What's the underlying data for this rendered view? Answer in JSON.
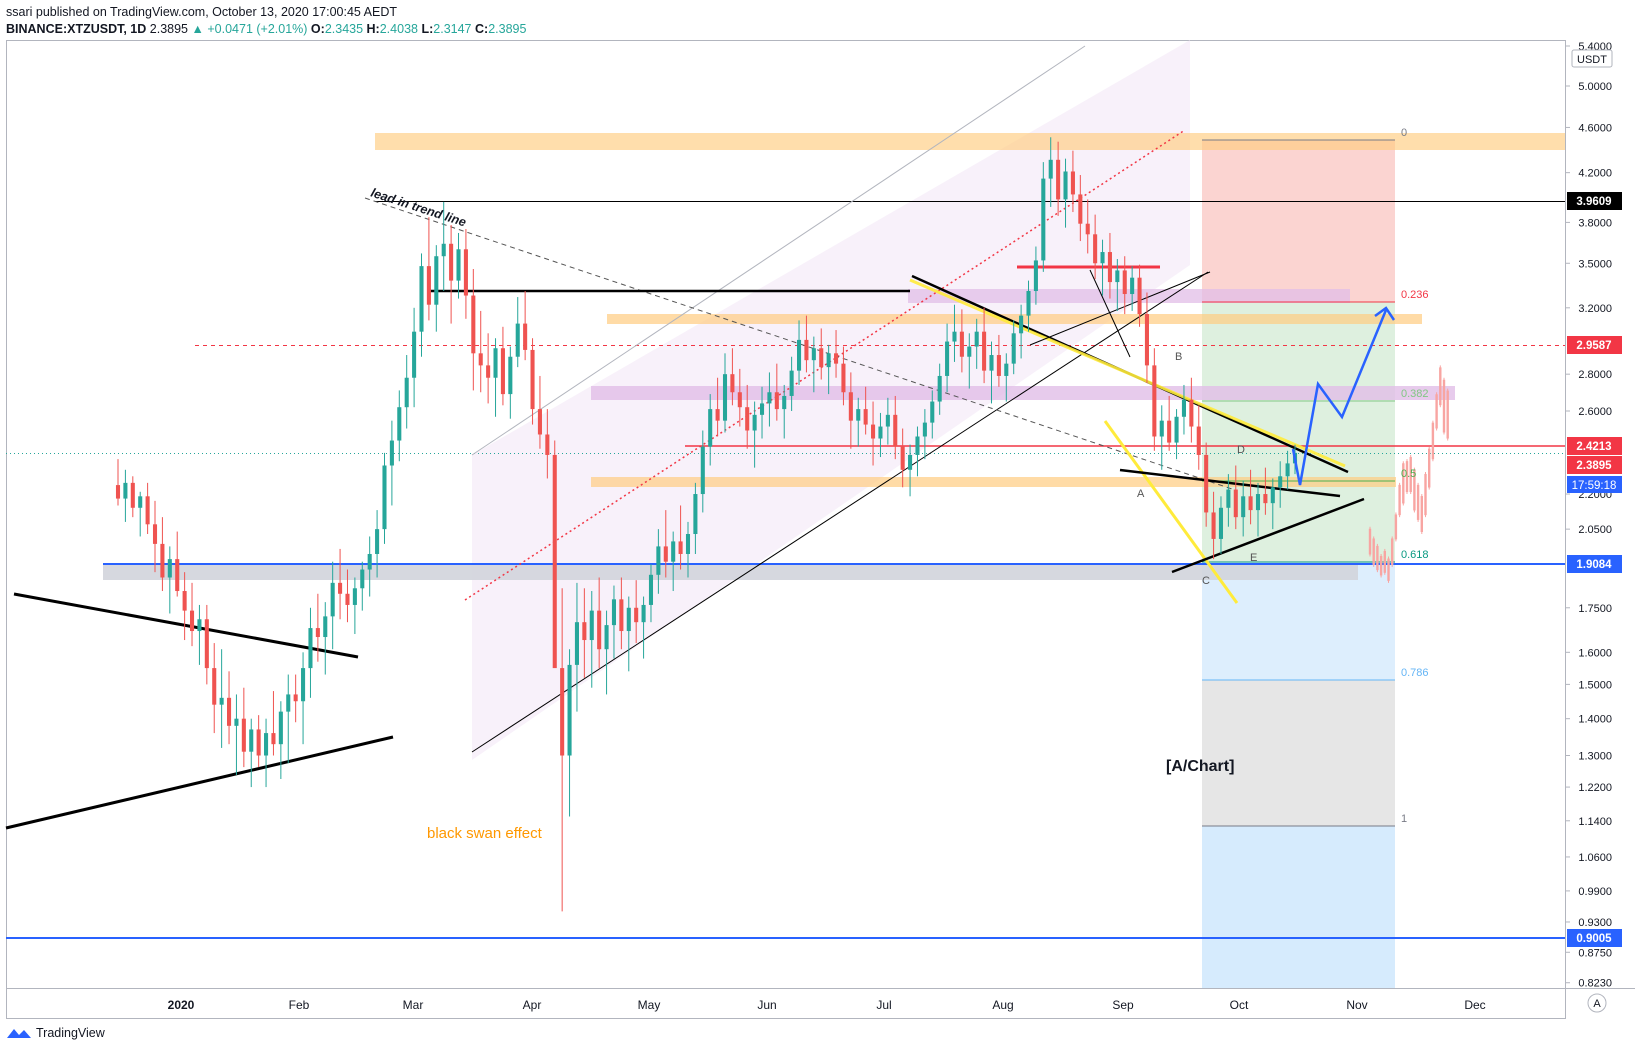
{
  "header": {
    "author": "ssari",
    "published_text": "published on TradingView.com, October 13, 2020 17:00:45 AEDT",
    "symbol": "BINANCE:XTZUSDT, 1D",
    "last": "2.3895",
    "change": "+0.0471 (+2.01%)",
    "o_label": "O:",
    "o": "2.3435",
    "h_label": "H:",
    "h": "2.4038",
    "l_label": "L:",
    "l": "2.3147",
    "c_label": "C:",
    "c": "2.3895"
  },
  "footer": {
    "brand": "TradingView"
  },
  "colors": {
    "up": "#26a69a",
    "down": "#ef5350",
    "accent_blue": "#2962ff",
    "red_level": "#f23645",
    "fib_orange": "#ffcc80",
    "fib_purple": "#e1bee7"
  },
  "chart_data": {
    "type": "candlestick",
    "symbol": "BINANCE:XTZUSDT",
    "interval": "1D",
    "currency": "USDT",
    "y_scale": "log",
    "ylim": [
      0.8,
      5.4
    ],
    "y_ticks": [
      "5.4000",
      "5.0000",
      "4.6000",
      "4.2000",
      "3.8000",
      "3.5000",
      "3.2000",
      "2.8000",
      "2.6000",
      "2.2000",
      "2.0500",
      "1.7500",
      "1.6000",
      "1.5000",
      "1.4000",
      "1.3000",
      "1.2200",
      "1.1400",
      "1.0600",
      "0.9900",
      "0.9300",
      "0.8750",
      "0.8230"
    ],
    "x_ticks": [
      "2020",
      "Feb",
      "Mar",
      "Apr",
      "May",
      "Jun",
      "Jul",
      "Aug",
      "Sep",
      "Oct",
      "Nov",
      "Dec"
    ],
    "axis_mark": "A",
    "last_countdown": "17:59:18",
    "price_labels": [
      {
        "value": 3.9609,
        "text": "3.9609",
        "color": "#000000"
      },
      {
        "value": 2.9587,
        "text": "2.9587",
        "color": "#f23645"
      },
      {
        "value": 2.4213,
        "text": "2.4213",
        "color": "#f23645"
      },
      {
        "value": 2.3895,
        "text": "2.3895",
        "color": "#f23645"
      },
      {
        "value": 1.9084,
        "text": "1.9084",
        "color": "#2962ff"
      },
      {
        "value": 0.9005,
        "text": "0.9005",
        "color": "#2962ff"
      }
    ],
    "fib_levels": [
      {
        "ratio": "0",
        "value": 4.47,
        "color": "#787b86"
      },
      {
        "ratio": "0.236",
        "value": 3.22,
        "color": "#f23645"
      },
      {
        "ratio": "0.382",
        "value": 2.64,
        "color": "#81c784"
      },
      {
        "ratio": "0.5",
        "value": 2.27,
        "color": "#4caf50"
      },
      {
        "ratio": "0.618",
        "value": 1.93,
        "color": "#089981"
      },
      {
        "ratio": "0.786",
        "value": 1.52,
        "color": "#64b5f6"
      },
      {
        "ratio": "1",
        "value": 1.13,
        "color": "#787b86"
      }
    ],
    "wave_labels": [
      "A",
      "B",
      "C",
      "D",
      "E"
    ],
    "annotations": [
      "lead in trend line",
      "black swan effect",
      "[A/Chart]"
    ],
    "ohlc_daily": [
      [
        2.24,
        2.36,
        2.15,
        2.18
      ],
      [
        2.18,
        2.31,
        2.08,
        2.25
      ],
      [
        2.25,
        2.28,
        2.1,
        2.14
      ],
      [
        2.14,
        2.21,
        2.02,
        2.19
      ],
      [
        2.19,
        2.25,
        2.03,
        2.07
      ],
      [
        2.07,
        2.17,
        1.88,
        1.99
      ],
      [
        1.99,
        2.1,
        1.81,
        1.86
      ],
      [
        1.86,
        1.98,
        1.73,
        1.93
      ],
      [
        1.93,
        2.04,
        1.79,
        1.81
      ],
      [
        1.81,
        1.88,
        1.64,
        1.74
      ],
      [
        1.74,
        1.84,
        1.62,
        1.67
      ],
      [
        1.67,
        1.76,
        1.56,
        1.71
      ],
      [
        1.71,
        1.76,
        1.5,
        1.55
      ],
      [
        1.55,
        1.63,
        1.36,
        1.44
      ],
      [
        1.44,
        1.61,
        1.32,
        1.46
      ],
      [
        1.46,
        1.54,
        1.33,
        1.38
      ],
      [
        1.38,
        1.47,
        1.25,
        1.4
      ],
      [
        1.4,
        1.49,
        1.27,
        1.31
      ],
      [
        1.31,
        1.4,
        1.22,
        1.37
      ],
      [
        1.37,
        1.41,
        1.27,
        1.3
      ],
      [
        1.3,
        1.4,
        1.22,
        1.36
      ],
      [
        1.36,
        1.48,
        1.3,
        1.33
      ],
      [
        1.33,
        1.45,
        1.24,
        1.42
      ],
      [
        1.42,
        1.53,
        1.28,
        1.47
      ],
      [
        1.47,
        1.53,
        1.39,
        1.45
      ],
      [
        1.45,
        1.6,
        1.33,
        1.55
      ],
      [
        1.55,
        1.75,
        1.46,
        1.68
      ],
      [
        1.68,
        1.8,
        1.57,
        1.65
      ],
      [
        1.65,
        1.77,
        1.53,
        1.72
      ],
      [
        1.72,
        1.92,
        1.61,
        1.84
      ],
      [
        1.84,
        1.97,
        1.71,
        1.8
      ],
      [
        1.8,
        1.89,
        1.7,
        1.76
      ],
      [
        1.76,
        1.86,
        1.66,
        1.82
      ],
      [
        1.82,
        1.92,
        1.74,
        1.89
      ],
      [
        1.89,
        2.02,
        1.79,
        1.95
      ],
      [
        1.95,
        2.13,
        1.86,
        2.05
      ],
      [
        2.05,
        2.39,
        1.99,
        2.33
      ],
      [
        2.33,
        2.55,
        2.15,
        2.45
      ],
      [
        2.45,
        2.71,
        2.35,
        2.62
      ],
      [
        2.62,
        2.91,
        2.51,
        2.78
      ],
      [
        2.78,
        3.2,
        2.62,
        3.05
      ],
      [
        3.05,
        3.57,
        2.9,
        3.48
      ],
      [
        3.48,
        3.84,
        3.12,
        3.22
      ],
      [
        3.22,
        3.63,
        3.05,
        3.55
      ],
      [
        3.55,
        3.96,
        3.31,
        3.64
      ],
      [
        3.64,
        3.78,
        3.1,
        3.38
      ],
      [
        3.38,
        3.72,
        3.26,
        3.6
      ],
      [
        3.6,
        3.75,
        3.13,
        3.28
      ],
      [
        3.28,
        3.46,
        2.71,
        2.92
      ],
      [
        2.92,
        3.18,
        2.7,
        2.85
      ],
      [
        2.85,
        3.04,
        2.64,
        2.78
      ],
      [
        2.78,
        3.01,
        2.57,
        2.95
      ],
      [
        2.95,
        3.08,
        2.63,
        2.69
      ],
      [
        2.69,
        2.96,
        2.56,
        2.9
      ],
      [
        2.9,
        3.27,
        2.84,
        3.1
      ],
      [
        3.1,
        3.31,
        2.88,
        2.94
      ],
      [
        2.94,
        3.01,
        2.53,
        2.61
      ],
      [
        2.61,
        2.79,
        2.41,
        2.48
      ],
      [
        2.48,
        2.61,
        2.27,
        2.38
      ],
      [
        2.38,
        2.45,
        1.62,
        1.55
      ],
      [
        1.55,
        1.82,
        0.95,
        1.3
      ],
      [
        1.3,
        1.61,
        1.15,
        1.56
      ],
      [
        1.56,
        1.84,
        1.42,
        1.7
      ],
      [
        1.7,
        1.82,
        1.52,
        1.64
      ],
      [
        1.64,
        1.81,
        1.49,
        1.74
      ],
      [
        1.74,
        1.86,
        1.55,
        1.61
      ],
      [
        1.61,
        1.74,
        1.47,
        1.69
      ],
      [
        1.69,
        1.83,
        1.58,
        1.78
      ],
      [
        1.78,
        1.86,
        1.61,
        1.67
      ],
      [
        1.67,
        1.79,
        1.54,
        1.75
      ],
      [
        1.75,
        1.85,
        1.63,
        1.7
      ],
      [
        1.7,
        1.79,
        1.58,
        1.76
      ],
      [
        1.76,
        1.91,
        1.7,
        1.87
      ],
      [
        1.87,
        2.05,
        1.8,
        1.98
      ],
      [
        1.98,
        2.13,
        1.86,
        1.92
      ],
      [
        1.92,
        2.04,
        1.81,
        2.0
      ],
      [
        2.0,
        2.15,
        1.89,
        1.95
      ],
      [
        1.95,
        2.08,
        1.86,
        2.03
      ],
      [
        2.03,
        2.25,
        1.95,
        2.2
      ],
      [
        2.2,
        2.5,
        2.12,
        2.42
      ],
      [
        2.42,
        2.69,
        2.33,
        2.61
      ],
      [
        2.61,
        2.78,
        2.47,
        2.55
      ],
      [
        2.55,
        2.92,
        2.49,
        2.8
      ],
      [
        2.8,
        2.95,
        2.63,
        2.7
      ],
      [
        2.7,
        2.83,
        2.52,
        2.62
      ],
      [
        2.62,
        2.74,
        2.41,
        2.5
      ],
      [
        2.5,
        2.65,
        2.32,
        2.58
      ],
      [
        2.58,
        2.73,
        2.46,
        2.64
      ],
      [
        2.64,
        2.81,
        2.52,
        2.7
      ],
      [
        2.7,
        2.86,
        2.55,
        2.61
      ],
      [
        2.61,
        2.74,
        2.46,
        2.68
      ],
      [
        2.68,
        2.9,
        2.6,
        2.82
      ],
      [
        2.82,
        3.12,
        2.74,
        3.0
      ],
      [
        3.0,
        3.15,
        2.81,
        2.88
      ],
      [
        2.88,
        3.02,
        2.7,
        2.95
      ],
      [
        2.95,
        3.07,
        2.77,
        2.84
      ],
      [
        2.84,
        2.97,
        2.69,
        2.92
      ],
      [
        2.92,
        3.06,
        2.78,
        2.86
      ],
      [
        2.86,
        2.96,
        2.63,
        2.7
      ],
      [
        2.7,
        2.81,
        2.41,
        2.55
      ],
      [
        2.55,
        2.67,
        2.42,
        2.61
      ],
      [
        2.61,
        2.73,
        2.48,
        2.53
      ],
      [
        2.53,
        2.65,
        2.33,
        2.46
      ],
      [
        2.46,
        2.59,
        2.37,
        2.52
      ],
      [
        2.52,
        2.67,
        2.43,
        2.58
      ],
      [
        2.58,
        2.68,
        2.36,
        2.42
      ],
      [
        2.42,
        2.51,
        2.23,
        2.31
      ],
      [
        2.31,
        2.43,
        2.19,
        2.38
      ],
      [
        2.38,
        2.52,
        2.28,
        2.47
      ],
      [
        2.47,
        2.61,
        2.36,
        2.54
      ],
      [
        2.54,
        2.71,
        2.46,
        2.65
      ],
      [
        2.65,
        2.86,
        2.58,
        2.79
      ],
      [
        2.79,
        3.1,
        2.7,
        2.99
      ],
      [
        2.99,
        3.22,
        2.87,
        3.05
      ],
      [
        3.05,
        3.19,
        2.81,
        2.9
      ],
      [
        2.9,
        3.04,
        2.72,
        2.96
      ],
      [
        2.96,
        3.13,
        2.83,
        3.05
      ],
      [
        3.05,
        3.2,
        2.75,
        2.82
      ],
      [
        2.82,
        2.99,
        2.64,
        2.91
      ],
      [
        2.91,
        3.03,
        2.73,
        2.79
      ],
      [
        2.79,
        2.92,
        2.65,
        2.86
      ],
      [
        2.86,
        3.12,
        2.8,
        3.04
      ],
      [
        3.04,
        3.22,
        2.89,
        3.15
      ],
      [
        3.15,
        3.38,
        3.05,
        3.31
      ],
      [
        3.31,
        3.62,
        3.22,
        3.52
      ],
      [
        3.52,
        4.29,
        3.44,
        4.15
      ],
      [
        4.15,
        4.51,
        3.92,
        4.31
      ],
      [
        4.31,
        4.47,
        3.85,
        3.98
      ],
      [
        3.98,
        4.32,
        3.76,
        4.21
      ],
      [
        4.21,
        4.39,
        3.88,
        4.02
      ],
      [
        4.02,
        4.18,
        3.66,
        3.79
      ],
      [
        3.79,
        3.98,
        3.57,
        3.71
      ],
      [
        3.71,
        3.86,
        3.39,
        3.5
      ],
      [
        3.5,
        3.67,
        3.28,
        3.58
      ],
      [
        3.58,
        3.72,
        3.26,
        3.37
      ],
      [
        3.37,
        3.53,
        3.18,
        3.45
      ],
      [
        3.45,
        3.55,
        3.16,
        3.29
      ],
      [
        3.29,
        3.48,
        3.18,
        3.4
      ],
      [
        3.4,
        3.49,
        3.08,
        3.16
      ],
      [
        3.16,
        3.3,
        2.75,
        2.85
      ],
      [
        2.85,
        2.95,
        2.4,
        2.47
      ],
      [
        2.47,
        2.63,
        2.31,
        2.55
      ],
      [
        2.55,
        2.68,
        2.4,
        2.44
      ],
      [
        2.44,
        2.61,
        2.36,
        2.57
      ],
      [
        2.57,
        2.74,
        2.48,
        2.66
      ],
      [
        2.66,
        2.78,
        2.44,
        2.52
      ],
      [
        2.52,
        2.63,
        2.31,
        2.38
      ],
      [
        2.38,
        2.44,
        2.06,
        2.12
      ],
      [
        2.12,
        2.21,
        1.93,
        2.01
      ],
      [
        2.01,
        2.19,
        1.95,
        2.14
      ],
      [
        2.14,
        2.29,
        2.06,
        2.22
      ],
      [
        2.22,
        2.33,
        2.05,
        2.1
      ],
      [
        2.1,
        2.26,
        2.02,
        2.19
      ],
      [
        2.19,
        2.31,
        2.07,
        2.13
      ],
      [
        2.13,
        2.25,
        2.02,
        2.2
      ],
      [
        2.2,
        2.32,
        2.11,
        2.16
      ],
      [
        2.16,
        2.27,
        2.05,
        2.23
      ],
      [
        2.23,
        2.35,
        2.14,
        2.28
      ],
      [
        2.28,
        2.4,
        2.22,
        2.34
      ],
      [
        2.34,
        2.43,
        2.29,
        2.39
      ]
    ],
    "projection_path_pct": [
      [
        0,
        0.42
      ],
      [
        0.12,
        0.32
      ],
      [
        0.27,
        0.55
      ],
      [
        0.45,
        0.38
      ],
      [
        0.8,
        0.55
      ],
      [
        1,
        0.75
      ]
    ]
  }
}
